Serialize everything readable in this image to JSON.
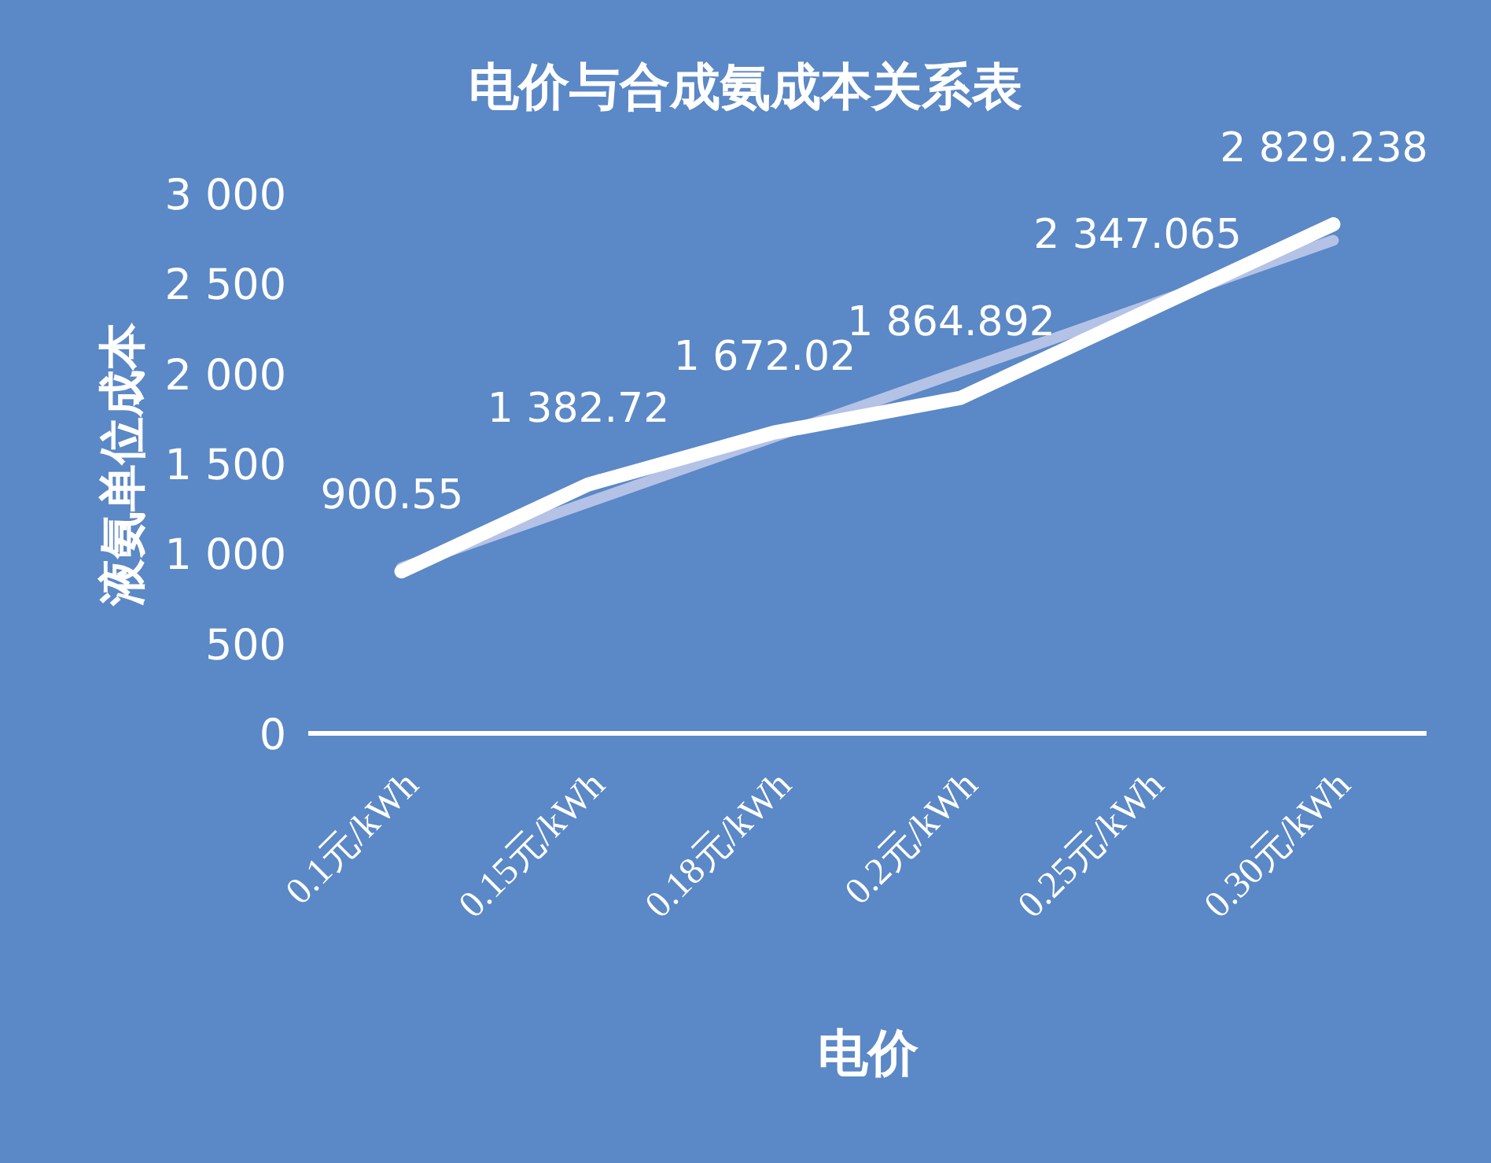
{
  "chart_data": {
    "type": "line",
    "title": "电价与合成氨成本关系表",
    "xlabel": "电价",
    "ylabel": "液氨单位成本",
    "categories": [
      "0.1元/kWh",
      "0.15元/kWh",
      "0.18元/kWh",
      "0.2元/kWh",
      "0.25元/kWh",
      "0.30元/kWh"
    ],
    "series": [
      {
        "color": "#ffffff",
        "values": [
          900.55,
          1382.72,
          1672.02,
          1864.892,
          2347.065,
          2829.238
        ],
        "value_labels": [
          "900.55",
          "1 382.72",
          "1 672.02",
          "1 864.892",
          "2 347.065",
          "2 829.238"
        ]
      },
      {
        "type": "line",
        "color": "#b4c2e6",
        "x": [
          "0.1元/kWh",
          "0.30元/kWh"
        ],
        "values": [
          920,
          2740
        ]
      }
    ],
    "ylim": [
      0,
      3000
    ],
    "yticks": [
      0,
      500,
      {
        "value": 1000,
        "label": "1 000"
      },
      {
        "value": 1500,
        "label": "1 500"
      },
      {
        "value": 2000,
        "label": "2 000"
      },
      {
        "value": 2500,
        "label": "2 500"
      },
      {
        "value": 3000,
        "label": "3 000"
      }
    ],
    "grid": false,
    "marker": "none",
    "line_style": "solid"
  }
}
